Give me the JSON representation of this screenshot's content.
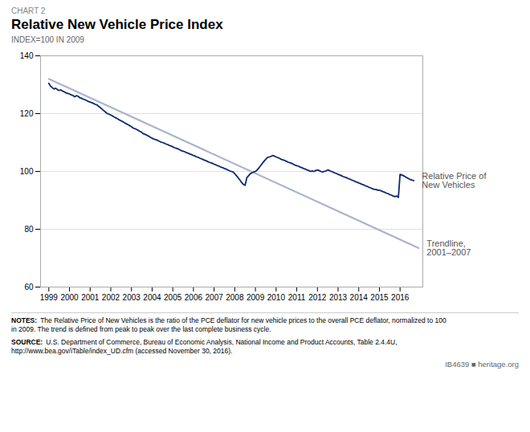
{
  "chart_data": {
    "type": "line",
    "chart_label": "CHART 2",
    "title": "Relative New Vehicle Price Index",
    "subtitle": "INDEX=100 IN 2009",
    "xlim": [
      1998.6,
      2017.1
    ],
    "xticks": [
      1999,
      2000,
      2001,
      2002,
      2003,
      2004,
      2005,
      2006,
      2007,
      2008,
      2009,
      2010,
      2011,
      2012,
      2013,
      2014,
      2015,
      2016
    ],
    "ylim": [
      60,
      140
    ],
    "yticks": [
      60,
      80,
      100,
      120,
      140
    ],
    "grid": true,
    "series": [
      {
        "name": "Relative Price of\nNew Vehicles",
        "color": "#0d2a6e",
        "x": [
          1999.0,
          1999.083,
          1999.167,
          1999.25,
          1999.333,
          1999.417,
          1999.5,
          1999.583,
          1999.667,
          1999.75,
          1999.833,
          1999.917,
          2000.0,
          2000.083,
          2000.167,
          2000.25,
          2000.333,
          2000.417,
          2000.5,
          2000.583,
          2000.667,
          2000.75,
          2000.833,
          2000.917,
          2001.0,
          2001.083,
          2001.167,
          2001.25,
          2001.333,
          2001.417,
          2001.5,
          2001.583,
          2001.667,
          2001.75,
          2001.833,
          2001.917,
          2002.0,
          2002.083,
          2002.167,
          2002.25,
          2002.333,
          2002.417,
          2002.5,
          2002.583,
          2002.667,
          2002.75,
          2002.833,
          2002.917,
          2003.0,
          2003.083,
          2003.167,
          2003.25,
          2003.333,
          2003.417,
          2003.5,
          2003.583,
          2003.667,
          2003.75,
          2003.833,
          2003.917,
          2004.0,
          2004.083,
          2004.167,
          2004.25,
          2004.333,
          2004.417,
          2004.5,
          2004.583,
          2004.667,
          2004.75,
          2004.833,
          2004.917,
          2005.0,
          2005.083,
          2005.167,
          2005.25,
          2005.333,
          2005.417,
          2005.5,
          2005.583,
          2005.667,
          2005.75,
          2005.833,
          2005.917,
          2006.0,
          2006.083,
          2006.167,
          2006.25,
          2006.333,
          2006.417,
          2006.5,
          2006.583,
          2006.667,
          2006.75,
          2006.833,
          2006.917,
          2007.0,
          2007.083,
          2007.167,
          2007.25,
          2007.333,
          2007.417,
          2007.5,
          2007.583,
          2007.667,
          2007.75,
          2007.833,
          2007.917,
          2008.0,
          2008.083,
          2008.167,
          2008.25,
          2008.333,
          2008.417,
          2008.5,
          2008.583,
          2008.667,
          2008.75,
          2008.833,
          2008.917,
          2009.0,
          2009.083,
          2009.167,
          2009.25,
          2009.333,
          2009.417,
          2009.5,
          2009.583,
          2009.667,
          2009.75,
          2009.833,
          2009.917,
          2010.0,
          2010.083,
          2010.167,
          2010.25,
          2010.333,
          2010.417,
          2010.5,
          2010.583,
          2010.667,
          2010.75,
          2010.833,
          2010.917,
          2011.0,
          2011.083,
          2011.167,
          2011.25,
          2011.333,
          2011.417,
          2011.5,
          2011.583,
          2011.667,
          2011.75,
          2011.833,
          2011.917,
          2012.0,
          2012.083,
          2012.167,
          2012.25,
          2012.333,
          2012.417,
          2012.5,
          2012.583,
          2012.667,
          2012.75,
          2012.833,
          2012.917,
          2013.0,
          2013.083,
          2013.167,
          2013.25,
          2013.333,
          2013.417,
          2013.5,
          2013.583,
          2013.667,
          2013.75,
          2013.833,
          2013.917,
          2014.0,
          2014.083,
          2014.167,
          2014.25,
          2014.333,
          2014.417,
          2014.5,
          2014.583,
          2014.667,
          2014.75,
          2014.833,
          2014.917,
          2015.0,
          2015.083,
          2015.167,
          2015.25,
          2015.333,
          2015.417,
          2015.5,
          2015.583,
          2015.667,
          2015.75,
          2015.833,
          2015.917,
          2016.0,
          2016.083,
          2016.167,
          2016.25,
          2016.333,
          2016.417,
          2016.5,
          2016.583,
          2016.667
        ],
        "values": [
          130.5,
          129.5,
          129.0,
          128.5,
          128.8,
          128.3,
          128.0,
          128.2,
          127.8,
          127.5,
          127.2,
          127.0,
          126.8,
          126.5,
          126.3,
          125.8,
          126.2,
          126.0,
          125.5,
          125.3,
          125.0,
          124.8,
          124.5,
          124.2,
          124.0,
          123.8,
          123.5,
          123.2,
          123.0,
          122.5,
          122.0,
          121.5,
          121.0,
          120.5,
          120.0,
          119.8,
          119.5,
          119.2,
          118.8,
          118.5,
          118.2,
          117.8,
          117.5,
          117.2,
          116.8,
          116.5,
          116.2,
          115.8,
          115.5,
          115.0,
          114.8,
          114.5,
          114.2,
          113.8,
          113.5,
          113.0,
          112.8,
          112.5,
          112.2,
          111.8,
          111.5,
          111.2,
          111.0,
          110.8,
          110.5,
          110.2,
          110.0,
          109.8,
          109.5,
          109.3,
          109.0,
          108.8,
          108.5,
          108.2,
          108.0,
          107.8,
          107.5,
          107.2,
          107.0,
          106.8,
          106.5,
          106.3,
          106.0,
          105.8,
          105.5,
          105.3,
          105.0,
          104.8,
          104.5,
          104.3,
          104.0,
          103.8,
          103.5,
          103.2,
          103.0,
          102.8,
          102.5,
          102.3,
          102.0,
          101.8,
          101.5,
          101.3,
          101.0,
          100.8,
          100.5,
          100.2,
          100.0,
          99.8,
          99.2,
          98.5,
          97.8,
          97.0,
          96.2,
          95.5,
          95.2,
          97.8,
          98.5,
          99.2,
          99.5,
          99.8,
          100.0,
          100.5,
          101.2,
          102.0,
          102.8,
          103.5,
          104.2,
          104.8,
          105.0,
          105.2,
          105.5,
          105.3,
          105.0,
          104.8,
          104.5,
          104.2,
          104.0,
          103.8,
          103.5,
          103.2,
          103.0,
          102.8,
          102.5,
          102.2,
          102.0,
          101.8,
          101.5,
          101.3,
          101.0,
          100.8,
          100.5,
          100.3,
          100.0,
          100.2,
          100.0,
          100.3,
          100.5,
          100.3,
          100.0,
          99.8,
          100.0,
          100.2,
          100.5,
          100.3,
          100.0,
          99.8,
          99.5,
          99.3,
          99.0,
          98.8,
          98.5,
          98.2,
          98.0,
          97.8,
          97.5,
          97.3,
          97.0,
          96.8,
          96.5,
          96.3,
          96.0,
          95.8,
          95.5,
          95.3,
          95.0,
          94.8,
          94.5,
          94.3,
          94.0,
          93.8,
          93.8,
          93.5,
          93.5,
          93.3,
          93.0,
          92.8,
          92.5,
          92.3,
          92.0,
          91.8,
          91.5,
          91.3,
          91.5,
          91.0,
          99.0,
          98.8,
          98.5,
          98.2,
          97.8,
          97.5,
          97.2,
          97.0,
          96.8
        ]
      },
      {
        "name": "Trendline,\n2001–2007",
        "color": "#aab4cc",
        "x": [
          1999.0,
          2016.9
        ],
        "values": [
          132.0,
          73.5
        ]
      }
    ],
    "notes": {
      "label": "NOTES:",
      "text": "The Relative Price of New Vehicles is the ratio of the PCE deflator for new vehicle prices to the overall PCE deflator, normalized to 100\nin 2009. The trend is defined from peak to peak over the last complete business cycle."
    },
    "source": {
      "label": "SOURCE:",
      "text": "U.S. Department of Commerce, Bureau of Economic Analysis, National Income and Product Accounts, Table 2.4.4U,\nhttp://www.bea.gov/iTable/index_UD.cfm (accessed November 30, 2016)."
    },
    "footer": "IB4639  ■  heritage.org"
  }
}
